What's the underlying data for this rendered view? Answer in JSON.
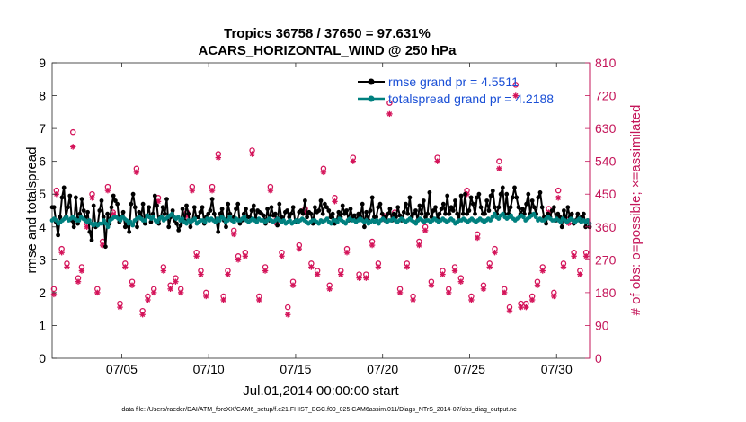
{
  "chart_data": {
    "type": "line",
    "title_line1": "Tropics 36758 / 37650 = 97.631%",
    "title_line2": "ACARS_HORIZONTAL_WIND @ 250 hPa",
    "xlabel": "Jul.01,2014 00:00:00 start",
    "ylabel_left": "rmse and totalspread",
    "ylabel_right": "# of obs: o=possible; ×=assimilated",
    "footnote": "data file: /Users/raeder/DAI/ATM_forcXX/CAM6_setup/f.e21.FHIST_BGC.f09_025.CAM6assim.011/Diags_NTrS_2014-07/obs_diag_output.nc",
    "xlim": [
      1.0,
      31.9
    ],
    "ylim_left": [
      0,
      9
    ],
    "ylim_right": [
      0,
      810
    ],
    "xticks": [
      {
        "v": 5,
        "label": "07/05"
      },
      {
        "v": 10,
        "label": "07/10"
      },
      {
        "v": 15,
        "label": "07/15"
      },
      {
        "v": 20,
        "label": "07/20"
      },
      {
        "v": 25,
        "label": "07/25"
      },
      {
        "v": 30,
        "label": "07/30"
      }
    ],
    "yticks_left": [
      {
        "v": 0,
        "label": "0"
      },
      {
        "v": 1,
        "label": "1"
      },
      {
        "v": 2,
        "label": "2"
      },
      {
        "v": 3,
        "label": "3"
      },
      {
        "v": 4,
        "label": "4"
      },
      {
        "v": 5,
        "label": "5"
      },
      {
        "v": 6,
        "label": "6"
      },
      {
        "v": 7,
        "label": "7"
      },
      {
        "v": 8,
        "label": "8"
      },
      {
        "v": 9,
        "label": "9"
      }
    ],
    "yticks_right": [
      {
        "v": 0,
        "label": "0"
      },
      {
        "v": 90,
        "label": "90"
      },
      {
        "v": 180,
        "label": "180"
      },
      {
        "v": 270,
        "label": "270"
      },
      {
        "v": 360,
        "label": "360"
      },
      {
        "v": 450,
        "label": "450"
      },
      {
        "v": 540,
        "label": "540"
      },
      {
        "v": 630,
        "label": "630"
      },
      {
        "v": 720,
        "label": "720"
      },
      {
        "v": 810,
        "label": "810"
      }
    ],
    "legend": {
      "placement": "top-right",
      "entries": [
        "rmse grand pr = 4.5511",
        "totalspread grand pr = 4.2188"
      ]
    },
    "colors": {
      "rmse": "#000000",
      "spread": "#00807f",
      "obs": "#d4145a",
      "text_right": "#c4165a",
      "legend_text": "#1a4fd6"
    },
    "series": [
      {
        "name": "rmse",
        "values": [
          4.6,
          4.6,
          4.15,
          3.75,
          4.3,
          4.9,
          5.2,
          4.3,
          4.6,
          4.95,
          4.2,
          4.0,
          4.9,
          4.1,
          4.4,
          4.85,
          4.5,
          4.2,
          4.45,
          3.85,
          3.6,
          4.65,
          4.0,
          4.05,
          4.5,
          4.8,
          4.3,
          3.4,
          4.4,
          4.1,
          4.6,
          4.95,
          4.8,
          4.7,
          4.15,
          4.3,
          4.45,
          4.0,
          4.1,
          3.85,
          4.7,
          5.0,
          4.6,
          4.0,
          4.45,
          4.3,
          4.7,
          4.1,
          4.35,
          4.6,
          4.15,
          4.4,
          4.95,
          4.65,
          4.1,
          4.3,
          4.6,
          4.4,
          4.85,
          4.0,
          4.3,
          4.5,
          4.2,
          4.1,
          3.9,
          4.05,
          4.55,
          4.2,
          4.65,
          4.4,
          4.0,
          4.2,
          4.6,
          4.3,
          4.3,
          4.45,
          4.6,
          4.1,
          4.3,
          4.4,
          4.5,
          4.85,
          4.4,
          4.2,
          3.85,
          4.4,
          4.55,
          4.2,
          4.0,
          4.7,
          4.4,
          4.2,
          4.3,
          4.55,
          4.7,
          4.1,
          4.2,
          4.4,
          4.55,
          4.3,
          4.3,
          4.5,
          4.65,
          4.25,
          4.5,
          4.45,
          4.4,
          4.35,
          4.1,
          4.55,
          4.2,
          4.6,
          4.35,
          4.4,
          4.05,
          4.7,
          4.3,
          4.2,
          4.45,
          4.5,
          4.3,
          4.4,
          4.6,
          4.15,
          4.2,
          4.45,
          4.5,
          4.4,
          4.8,
          4.3,
          4.45,
          4.4,
          4.1,
          4.6,
          4.45,
          4.5,
          4.8,
          4.4,
          4.7,
          4.6,
          4.5,
          4.3,
          4.4,
          4.1,
          4.2,
          4.45,
          4.3,
          4.65,
          4.4,
          4.5,
          4.2,
          4.55,
          4.3,
          4.35,
          4.2,
          4.4,
          4.3,
          4.7,
          4.0,
          4.45,
          4.2,
          4.5,
          4.9,
          4.3,
          4.3,
          4.6,
          4.7,
          4.4,
          4.3,
          4.2,
          4.4,
          4.55,
          4.2,
          4.4,
          4.3,
          4.6,
          4.35,
          4.2,
          4.45,
          4.7,
          4.4,
          4.9,
          4.3,
          4.4,
          4.5,
          4.2,
          4.65,
          4.4,
          4.8,
          4.3,
          4.4,
          5.05,
          4.3,
          4.5,
          4.6,
          4.25,
          4.4,
          4.55,
          4.7,
          4.4,
          4.95,
          4.4,
          4.6,
          4.5,
          4.8,
          4.4,
          4.2,
          4.95,
          4.4,
          5.0,
          4.4,
          4.5,
          4.9,
          4.7,
          4.4,
          4.9,
          5.0,
          4.6,
          4.4,
          4.4,
          4.8,
          4.5,
          4.95,
          5.1,
          4.6,
          4.4,
          4.6,
          5.0,
          5.2,
          4.4,
          5.0,
          4.4,
          4.6,
          4.9,
          5.2,
          4.9,
          4.6,
          4.4,
          4.55,
          4.4,
          4.7,
          5.0,
          4.4,
          4.8,
          4.6,
          4.4,
          4.9,
          5.05,
          4.6,
          4.3,
          4.1,
          4.4,
          4.3,
          4.5,
          4.6,
          4.2,
          4.4,
          4.3,
          4.0,
          4.5,
          4.2,
          4.6,
          4.3,
          4.4,
          4.1,
          4.2,
          4.4,
          4.2,
          4.3,
          4.4,
          4.0,
          4.2,
          4.0
        ]
      },
      {
        "name": "totalspread",
        "values": [
          4.2,
          4.25,
          4.2,
          4.1,
          4.15,
          4.2,
          4.25,
          4.3,
          4.2,
          4.25,
          4.3,
          4.25,
          4.2,
          4.2,
          4.3,
          4.25,
          4.2,
          4.15,
          4.2,
          4.1,
          4.05,
          4.1,
          4.05,
          4.1,
          4.1,
          4.2,
          4.1,
          4.0,
          4.2,
          4.25,
          4.3,
          4.3,
          4.25,
          4.2,
          4.3,
          4.25,
          4.2,
          4.1,
          4.15,
          4.05,
          4.2,
          4.25,
          4.3,
          4.25,
          4.2,
          4.2,
          4.35,
          4.3,
          4.25,
          4.3,
          4.2,
          4.15,
          4.25,
          4.3,
          4.2,
          4.25,
          4.3,
          4.35,
          4.4,
          4.3,
          4.25,
          4.3,
          4.2,
          4.25,
          4.15,
          4.1,
          4.2,
          4.15,
          4.2,
          4.25,
          4.1,
          4.15,
          4.2,
          4.2,
          4.15,
          4.25,
          4.2,
          4.25,
          4.2,
          4.15,
          4.25,
          4.2,
          4.3,
          4.25,
          4.15,
          4.2,
          4.3,
          4.2,
          4.15,
          4.25,
          4.2,
          4.2,
          4.25,
          4.3,
          4.2,
          4.15,
          4.2,
          4.25,
          4.2,
          4.15,
          4.25,
          4.2,
          4.2,
          4.15,
          4.2,
          4.25,
          4.2,
          4.15,
          4.2,
          4.25,
          4.2,
          4.15,
          4.2,
          4.1,
          4.15,
          4.2,
          4.1,
          4.15,
          4.2,
          4.15,
          4.2,
          4.25,
          4.2,
          4.15,
          4.1,
          4.15,
          4.2,
          4.2,
          4.15,
          4.1,
          4.2,
          4.15,
          4.2,
          4.25,
          4.15,
          4.1,
          4.2,
          4.2,
          4.15,
          4.25,
          4.2,
          4.15,
          4.1,
          4.2,
          4.25,
          4.2,
          4.2,
          4.15,
          4.2,
          4.25,
          4.2,
          4.15,
          4.2,
          4.1,
          4.15,
          4.2,
          4.15,
          4.2,
          4.1,
          4.2,
          4.25,
          4.2,
          4.15,
          4.2,
          4.2,
          4.25,
          4.2,
          4.15,
          4.2,
          4.25,
          4.2,
          4.15,
          4.2,
          4.25,
          4.2,
          4.15,
          4.1,
          4.2,
          4.25,
          4.2,
          4.15,
          4.2,
          4.2,
          4.15,
          4.2,
          4.25,
          4.2,
          4.15,
          4.2,
          4.25,
          4.2,
          4.15,
          4.2,
          4.25,
          4.2,
          4.1,
          4.15,
          4.2,
          4.2,
          4.25,
          4.2,
          4.15,
          4.2,
          4.25,
          4.2,
          4.15,
          4.2,
          4.25,
          4.2,
          4.15,
          4.2,
          4.25,
          4.2,
          4.3,
          4.4,
          4.3,
          4.25,
          4.35,
          4.4,
          4.3,
          4.25,
          4.3,
          4.35,
          4.25,
          4.2,
          4.25,
          4.3,
          4.35,
          4.3,
          4.2,
          4.25,
          4.3,
          4.35,
          4.4,
          4.3,
          4.2,
          4.25,
          4.2,
          4.2,
          4.25,
          4.3,
          4.25,
          4.2,
          4.2,
          4.25,
          4.2,
          4.15,
          4.25,
          4.2,
          4.15,
          4.2,
          4.25,
          4.2,
          4.15,
          4.2,
          4.25,
          4.15,
          4.2,
          4.15,
          4.2,
          4.1
        ]
      }
    ],
    "obs_possible": [
      [
        1.1,
        190
      ],
      [
        1.25,
        460
      ],
      [
        1.55,
        300
      ],
      [
        1.85,
        260
      ],
      [
        2.2,
        620
      ],
      [
        2.5,
        220
      ],
      [
        2.7,
        250
      ],
      [
        3.0,
        370
      ],
      [
        3.3,
        450
      ],
      [
        3.6,
        190
      ],
      [
        3.9,
        320
      ],
      [
        4.2,
        470
      ],
      [
        4.5,
        400
      ],
      [
        4.9,
        150
      ],
      [
        5.2,
        260
      ],
      [
        5.6,
        210
      ],
      [
        5.85,
        520
      ],
      [
        6.2,
        130
      ],
      [
        6.5,
        170
      ],
      [
        6.85,
        190
      ],
      [
        7.1,
        440
      ],
      [
        7.4,
        250
      ],
      [
        7.8,
        200
      ],
      [
        8.1,
        220
      ],
      [
        8.4,
        190
      ],
      [
        8.75,
        400
      ],
      [
        9.05,
        470
      ],
      [
        9.3,
        290
      ],
      [
        9.55,
        240
      ],
      [
        9.85,
        180
      ],
      [
        10.2,
        470
      ],
      [
        10.55,
        560
      ],
      [
        10.85,
        170
      ],
      [
        11.1,
        240
      ],
      [
        11.45,
        350
      ],
      [
        11.7,
        280
      ],
      [
        12.1,
        290
      ],
      [
        12.5,
        570
      ],
      [
        12.9,
        170
      ],
      [
        13.25,
        250
      ],
      [
        13.55,
        470
      ],
      [
        13.9,
        380
      ],
      [
        14.2,
        290
      ],
      [
        14.55,
        140
      ],
      [
        14.85,
        210
      ],
      [
        15.2,
        310
      ],
      [
        15.55,
        410
      ],
      [
        15.9,
        260
      ],
      [
        16.25,
        240
      ],
      [
        16.6,
        520
      ],
      [
        16.95,
        200
      ],
      [
        17.25,
        440
      ],
      [
        17.6,
        240
      ],
      [
        17.95,
        300
      ],
      [
        18.3,
        550
      ],
      [
        18.65,
        230
      ],
      [
        19.05,
        230
      ],
      [
        19.4,
        320
      ],
      [
        19.75,
        260
      ],
      [
        20.1,
        390
      ],
      [
        20.4,
        700
      ],
      [
        20.7,
        400
      ],
      [
        21.0,
        190
      ],
      [
        21.4,
        260
      ],
      [
        21.75,
        170
      ],
      [
        22.1,
        320
      ],
      [
        22.45,
        360
      ],
      [
        22.8,
        210
      ],
      [
        23.15,
        550
      ],
      [
        23.45,
        240
      ],
      [
        23.8,
        190
      ],
      [
        24.15,
        250
      ],
      [
        24.5,
        220
      ],
      [
        24.85,
        460
      ],
      [
        25.1,
        170
      ],
      [
        25.45,
        340
      ],
      [
        25.8,
        200
      ],
      [
        26.15,
        260
      ],
      [
        26.45,
        300
      ],
      [
        26.7,
        540
      ],
      [
        27.0,
        190
      ],
      [
        27.3,
        140
      ],
      [
        27.65,
        750
      ],
      [
        27.95,
        150
      ],
      [
        28.25,
        150
      ],
      [
        28.6,
        170
      ],
      [
        28.9,
        210
      ],
      [
        29.2,
        250
      ],
      [
        29.55,
        410
      ],
      [
        29.85,
        180
      ],
      [
        30.1,
        460
      ],
      [
        30.4,
        260
      ],
      [
        30.7,
        380
      ],
      [
        31.0,
        290
      ],
      [
        31.35,
        240
      ],
      [
        31.7,
        290
      ]
    ],
    "obs_assim": [
      [
        1.1,
        175
      ],
      [
        1.25,
        450
      ],
      [
        1.55,
        290
      ],
      [
        1.85,
        250
      ],
      [
        2.2,
        580
      ],
      [
        2.5,
        210
      ],
      [
        2.7,
        240
      ],
      [
        3.0,
        360
      ],
      [
        3.3,
        440
      ],
      [
        3.6,
        180
      ],
      [
        3.9,
        310
      ],
      [
        4.2,
        460
      ],
      [
        4.5,
        395
      ],
      [
        4.9,
        140
      ],
      [
        5.2,
        250
      ],
      [
        5.6,
        200
      ],
      [
        5.85,
        510
      ],
      [
        6.2,
        120
      ],
      [
        6.5,
        160
      ],
      [
        6.85,
        180
      ],
      [
        7.1,
        430
      ],
      [
        7.4,
        240
      ],
      [
        7.8,
        190
      ],
      [
        8.1,
        210
      ],
      [
        8.4,
        180
      ],
      [
        8.75,
        390
      ],
      [
        9.05,
        460
      ],
      [
        9.3,
        280
      ],
      [
        9.55,
        230
      ],
      [
        9.85,
        170
      ],
      [
        10.2,
        460
      ],
      [
        10.55,
        550
      ],
      [
        10.85,
        160
      ],
      [
        11.1,
        230
      ],
      [
        11.45,
        340
      ],
      [
        11.7,
        270
      ],
      [
        12.1,
        280
      ],
      [
        12.5,
        560
      ],
      [
        12.9,
        160
      ],
      [
        13.25,
        240
      ],
      [
        13.55,
        460
      ],
      [
        13.9,
        370
      ],
      [
        14.2,
        280
      ],
      [
        14.55,
        120
      ],
      [
        14.85,
        200
      ],
      [
        15.2,
        300
      ],
      [
        15.55,
        400
      ],
      [
        15.9,
        250
      ],
      [
        16.25,
        230
      ],
      [
        16.6,
        510
      ],
      [
        16.95,
        190
      ],
      [
        17.25,
        430
      ],
      [
        17.6,
        230
      ],
      [
        17.95,
        290
      ],
      [
        18.3,
        540
      ],
      [
        18.65,
        220
      ],
      [
        19.05,
        220
      ],
      [
        19.4,
        310
      ],
      [
        19.75,
        250
      ],
      [
        20.1,
        380
      ],
      [
        20.4,
        670
      ],
      [
        20.7,
        390
      ],
      [
        21.0,
        180
      ],
      [
        21.4,
        250
      ],
      [
        21.75,
        160
      ],
      [
        22.1,
        310
      ],
      [
        22.45,
        350
      ],
      [
        22.8,
        200
      ],
      [
        23.15,
        540
      ],
      [
        23.45,
        230
      ],
      [
        23.8,
        180
      ],
      [
        24.15,
        240
      ],
      [
        24.5,
        210
      ],
      [
        24.85,
        450
      ],
      [
        25.1,
        160
      ],
      [
        25.45,
        330
      ],
      [
        25.8,
        190
      ],
      [
        26.15,
        250
      ],
      [
        26.45,
        290
      ],
      [
        26.7,
        520
      ],
      [
        27.0,
        180
      ],
      [
        27.3,
        130
      ],
      [
        27.65,
        720
      ],
      [
        27.95,
        140
      ],
      [
        28.25,
        140
      ],
      [
        28.6,
        160
      ],
      [
        28.9,
        200
      ],
      [
        29.2,
        240
      ],
      [
        29.55,
        400
      ],
      [
        29.85,
        170
      ],
      [
        30.1,
        440
      ],
      [
        30.4,
        250
      ],
      [
        30.7,
        370
      ],
      [
        31.0,
        280
      ],
      [
        31.35,
        230
      ],
      [
        31.7,
        280
      ]
    ]
  }
}
